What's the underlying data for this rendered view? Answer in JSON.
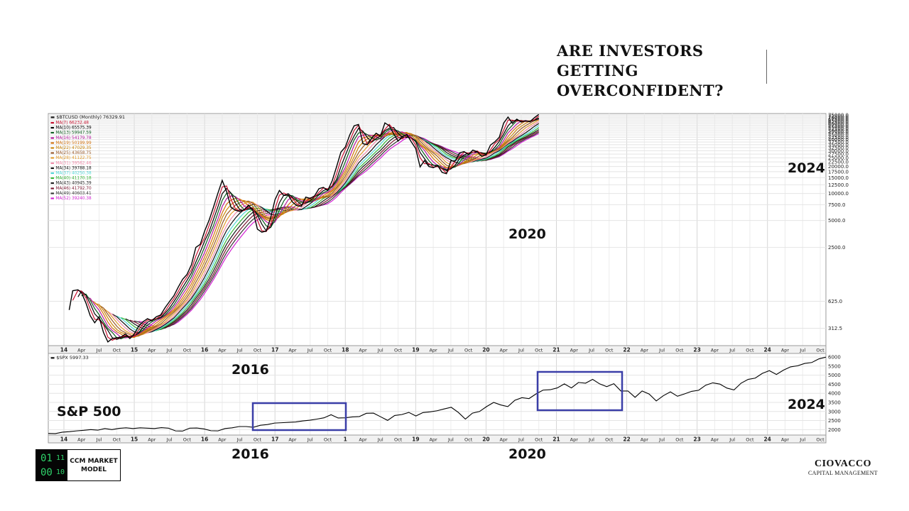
{
  "headline": [
    "ARE INVESTORS",
    "GETTING",
    "OVERCONFIDENT?"
  ],
  "annotations": {
    "btc_2020": "2020",
    "btc_2024": "2024",
    "spx_2016_top": "2016",
    "spx_label": "S&P 500",
    "spx_2024": "2024",
    "bottom_2016": "2016",
    "bottom_2020": "2020"
  },
  "logo": {
    "bits": [
      "01",
      "11",
      "00",
      "10"
    ],
    "line1": "CCM MARKET",
    "line2": "MODEL"
  },
  "brand": {
    "name": "CIOVACCO",
    "sub": "CAPITAL MANAGEMENT"
  },
  "chart_data": [
    {
      "type": "line",
      "scale": "log",
      "title": "$BTCUSD (Monthly) 76329.91",
      "x_tick_labels": [
        "14",
        "Apr",
        "Jul",
        "Oct",
        "15",
        "Apr",
        "Jul",
        "Oct",
        "16",
        "Apr",
        "Jul",
        "Oct",
        "17",
        "Apr",
        "Jul",
        "Oct",
        "18",
        "Apr",
        "Jul",
        "Oct",
        "19",
        "Apr",
        "Jul",
        "Oct",
        "20",
        "Apr",
        "Jul",
        "Oct",
        "21",
        "Apr",
        "Jul",
        "Oct",
        "22",
        "Apr",
        "Jul",
        "Oct",
        "23",
        "Apr",
        "Jul",
        "Oct",
        "24",
        "Apr",
        "Jul",
        "Oct"
      ],
      "y_tick_labels": [
        "75000.0",
        "72500.0",
        "70000.0",
        "67500.0",
        "65000.0",
        "62500.0",
        "60000.0",
        "57500.0",
        "55000.0",
        "52500.0",
        "50000.0",
        "47500.0",
        "45000.0",
        "42500.0",
        "40000.0",
        "37500.0",
        "35000.0",
        "32500.0",
        "30000.0",
        "27500.0",
        "25000.0",
        "22500.0",
        "20000.0",
        "17500.0",
        "15000.0",
        "12500.0",
        "10000.0",
        "7500.0",
        "5000.0",
        "2500.0",
        "625.0",
        "312.5"
      ],
      "ylim": [
        200,
        78000
      ],
      "legend": [
        {
          "label": "MA(7) 66232.48",
          "color": "#c8102e"
        },
        {
          "label": "MA(10) 65575.39",
          "color": "#000000"
        },
        {
          "label": "MA(13) 59947.59",
          "color": "#0b5d1e"
        },
        {
          "label": "MA(16) 54179.78",
          "color": "#b5179e"
        },
        {
          "label": "MA(19) 50199.99",
          "color": "#d4740f"
        },
        {
          "label": "MA(22) 47029.35",
          "color": "#c9850a"
        },
        {
          "label": "MA(25) 43658.75",
          "color": "#9a5a2a"
        },
        {
          "label": "MA(28) 41122.75",
          "color": "#e29b2c"
        },
        {
          "label": "MA(31) 39562.46",
          "color": "#f08aa8"
        },
        {
          "label": "MA(34) 39788.18",
          "color": "#111111"
        },
        {
          "label": "MA(37) 40250.38",
          "color": "#4fd6d6"
        },
        {
          "label": "MA(40) 41170.18",
          "color": "#35b535"
        },
        {
          "label": "MA(43) 40945.39",
          "color": "#1a1a1a"
        },
        {
          "label": "MA(46) 41792.70",
          "color": "#7a1530"
        },
        {
          "label": "MA(49) 40603.41",
          "color": "#333333"
        },
        {
          "label": "MA(52) 39240.38",
          "color": "#d11fd1"
        }
      ],
      "price_series": {
        "name": "$BTCUSD",
        "color": "#000000",
        "points": [
          [
            0.6,
            500
          ],
          [
            1,
            820
          ],
          [
            1.6,
            840
          ],
          [
            2,
            780
          ],
          [
            2.5,
            600
          ],
          [
            3,
            430
          ],
          [
            3.5,
            360
          ],
          [
            4,
            420
          ],
          [
            4.5,
            280
          ],
          [
            5,
            220
          ],
          [
            5.5,
            240
          ],
          [
            6,
            245
          ],
          [
            6.5,
            250
          ],
          [
            7,
            270
          ],
          [
            7.5,
            240
          ],
          [
            8,
            270
          ],
          [
            8.5,
            330
          ],
          [
            9,
            370
          ],
          [
            9.5,
            400
          ],
          [
            10,
            380
          ],
          [
            10.5,
            420
          ],
          [
            11,
            440
          ],
          [
            11.5,
            530
          ],
          [
            12,
            620
          ],
          [
            12.5,
            720
          ],
          [
            13,
            900
          ],
          [
            13.5,
            1100
          ],
          [
            14,
            1250
          ],
          [
            14.5,
            1600
          ],
          [
            15,
            2500
          ],
          [
            15.5,
            2700
          ],
          [
            16,
            3800
          ],
          [
            16.5,
            5000
          ],
          [
            17,
            7000
          ],
          [
            17.5,
            10000
          ],
          [
            18,
            14000
          ],
          [
            18.5,
            10500
          ],
          [
            19,
            7000
          ],
          [
            19.5,
            6500
          ],
          [
            20,
            6300
          ],
          [
            20.5,
            6600
          ],
          [
            21,
            7400
          ],
          [
            21.5,
            6400
          ],
          [
            22,
            4000
          ],
          [
            22.5,
            3700
          ],
          [
            23,
            3800
          ],
          [
            23.5,
            5300
          ],
          [
            24,
            8500
          ],
          [
            24.5,
            10800
          ],
          [
            25,
            9500
          ],
          [
            25.5,
            9600
          ],
          [
            26,
            8000
          ],
          [
            26.5,
            7300
          ],
          [
            27,
            7200
          ],
          [
            27.5,
            9100
          ],
          [
            28,
            8800
          ],
          [
            28.5,
            9400
          ],
          [
            29,
            11300
          ],
          [
            29.5,
            11700
          ],
          [
            30,
            10800
          ],
          [
            30.5,
            13800
          ],
          [
            31,
            19800
          ],
          [
            31.5,
            29000
          ],
          [
            32,
            33000
          ],
          [
            32.5,
            45000
          ],
          [
            33,
            57000
          ],
          [
            33.5,
            58900
          ],
          [
            34,
            36000
          ],
          [
            34.5,
            35000
          ],
          [
            35,
            41500
          ],
          [
            35.5,
            47000
          ],
          [
            36,
            43800
          ],
          [
            36.5,
            61300
          ],
          [
            37,
            57000
          ],
          [
            37.5,
            46300
          ],
          [
            38,
            38500
          ],
          [
            38.5,
            43200
          ],
          [
            39,
            45500
          ],
          [
            39.5,
            37700
          ],
          [
            40,
            31800
          ],
          [
            40.5,
            19800
          ],
          [
            41,
            23300
          ],
          [
            41.5,
            20000
          ],
          [
            42,
            19400
          ],
          [
            42.5,
            20500
          ],
          [
            43,
            17200
          ],
          [
            43.5,
            16600
          ],
          [
            44,
            23100
          ],
          [
            44.5,
            23100
          ],
          [
            45,
            28400
          ],
          [
            45.5,
            29300
          ],
          [
            46,
            27200
          ],
          [
            46.5,
            30500
          ],
          [
            47,
            29200
          ],
          [
            47.5,
            26000
          ],
          [
            48,
            27000
          ],
          [
            48.5,
            34700
          ],
          [
            49,
            37700
          ],
          [
            49.5,
            42300
          ],
          [
            50,
            61000
          ],
          [
            50.5,
            71300
          ],
          [
            51,
            60600
          ],
          [
            51.5,
            67500
          ],
          [
            52,
            62700
          ],
          [
            52.5,
            64600
          ],
          [
            53,
            63300
          ],
          [
            53.5,
            70200
          ],
          [
            54,
            76329
          ]
        ]
      },
      "moving_average_lengths": [
        7,
        10,
        13,
        16,
        19,
        22,
        25,
        28,
        31,
        34,
        37,
        40,
        43,
        46,
        49,
        52
      ],
      "x_units": "months since Jan 2014 (0=Jan 2014, 12=Jan 2015, ...), plotted at 1.5 month steps per tick spacing"
    },
    {
      "type": "line",
      "title": "$SPX 5997.33",
      "x_tick_labels": [
        "14",
        "Apr",
        "Jul",
        "Oct",
        "15",
        "Apr",
        "Jul",
        "Oct",
        "16",
        "Apr",
        "Jul",
        "Oct",
        "17",
        "Apr",
        "Jul",
        "Oct",
        "1",
        "Apr",
        "Jul",
        "Oct",
        "19",
        "Apr",
        "Jul",
        "Oct",
        "20",
        "Apr",
        "Jul",
        "Oct",
        "21",
        "Apr",
        "Jul",
        "Oct",
        "22",
        "Apr",
        "Jul",
        "Oct",
        "23",
        "Apr",
        "Jul",
        "Oct",
        "24",
        "Apr",
        "Jul",
        "Oct"
      ],
      "y_tick_labels": [
        "6000",
        "5500",
        "5000",
        "4500",
        "4000",
        "3500",
        "3000",
        "2500",
        "2000"
      ],
      "ylim": [
        1700,
        6200
      ],
      "series": [
        {
          "name": "$SPX",
          "color": "#000000",
          "points": [
            [
              0,
              1790
            ],
            [
              1,
              1780
            ],
            [
              2,
              1860
            ],
            [
              3,
              1890
            ],
            [
              4,
              1930
            ],
            [
              5,
              1960
            ],
            [
              6,
              2000
            ],
            [
              7,
              1970
            ],
            [
              8,
              2060
            ],
            [
              9,
              2000
            ],
            [
              10,
              2070
            ],
            [
              11,
              2100
            ],
            [
              12,
              2060
            ],
            [
              13,
              2100
            ],
            [
              14,
              2080
            ],
            [
              15,
              2060
            ],
            [
              16,
              2110
            ],
            [
              17,
              2080
            ],
            [
              18,
              1930
            ],
            [
              19,
              1920
            ],
            [
              20,
              2080
            ],
            [
              21,
              2090
            ],
            [
              22,
              2040
            ],
            [
              23,
              1940
            ],
            [
              24,
              1930
            ],
            [
              25,
              2060
            ],
            [
              26,
              2100
            ],
            [
              27,
              2170
            ],
            [
              28,
              2170
            ],
            [
              29,
              2130
            ],
            [
              30,
              2240
            ],
            [
              31,
              2280
            ],
            [
              32,
              2360
            ],
            [
              33,
              2380
            ],
            [
              34,
              2400
            ],
            [
              35,
              2420
            ],
            [
              36,
              2480
            ],
            [
              37,
              2520
            ],
            [
              38,
              2580
            ],
            [
              39,
              2650
            ],
            [
              40,
              2820
            ],
            [
              41,
              2640
            ],
            [
              42,
              2650
            ],
            [
              43,
              2700
            ],
            [
              44,
              2720
            ],
            [
              45,
              2900
            ],
            [
              46,
              2910
            ],
            [
              47,
              2710
            ],
            [
              48,
              2510
            ],
            [
              49,
              2780
            ],
            [
              50,
              2830
            ],
            [
              51,
              2950
            ],
            [
              52,
              2750
            ],
            [
              53,
              2940
            ],
            [
              54,
              2980
            ],
            [
              55,
              3040
            ],
            [
              56,
              3140
            ],
            [
              57,
              3230
            ],
            [
              58,
              2950
            ],
            [
              59,
              2580
            ],
            [
              60,
              2910
            ],
            [
              61,
              3000
            ],
            [
              62,
              3270
            ],
            [
              63,
              3500
            ],
            [
              64,
              3360
            ],
            [
              65,
              3270
            ],
            [
              66,
              3620
            ],
            [
              67,
              3760
            ],
            [
              68,
              3710
            ],
            [
              69,
              3970
            ],
            [
              70,
              4180
            ],
            [
              71,
              4200
            ],
            [
              72,
              4300
            ],
            [
              73,
              4520
            ],
            [
              74,
              4300
            ],
            [
              75,
              4600
            ],
            [
              76,
              4560
            ],
            [
              77,
              4770
            ],
            [
              78,
              4520
            ],
            [
              79,
              4370
            ],
            [
              80,
              4530
            ],
            [
              81,
              4130
            ],
            [
              82,
              4130
            ],
            [
              83,
              3780
            ],
            [
              84,
              4130
            ],
            [
              85,
              3960
            ],
            [
              86,
              3580
            ],
            [
              87,
              3870
            ],
            [
              88,
              4080
            ],
            [
              89,
              3840
            ],
            [
              90,
              3970
            ],
            [
              91,
              4110
            ],
            [
              92,
              4170
            ],
            [
              93,
              4450
            ],
            [
              94,
              4580
            ],
            [
              95,
              4510
            ],
            [
              96,
              4290
            ],
            [
              97,
              4190
            ],
            [
              98,
              4560
            ],
            [
              99,
              4770
            ],
            [
              100,
              4840
            ],
            [
              101,
              5100
            ],
            [
              102,
              5250
            ],
            [
              103,
              5040
            ],
            [
              104,
              5280
            ],
            [
              105,
              5460
            ],
            [
              106,
              5520
            ],
            [
              107,
              5650
            ],
            [
              108,
              5700
            ],
            [
              109,
              5900
            ],
            [
              110,
              5997
            ]
          ]
        }
      ],
      "highlight_boxes": [
        {
          "label": "2016 breakout window",
          "x_range_months": [
            34,
            52
          ]
        },
        {
          "label": "2020 breakout window",
          "x_range_months": [
            82,
            98
          ]
        }
      ]
    }
  ]
}
